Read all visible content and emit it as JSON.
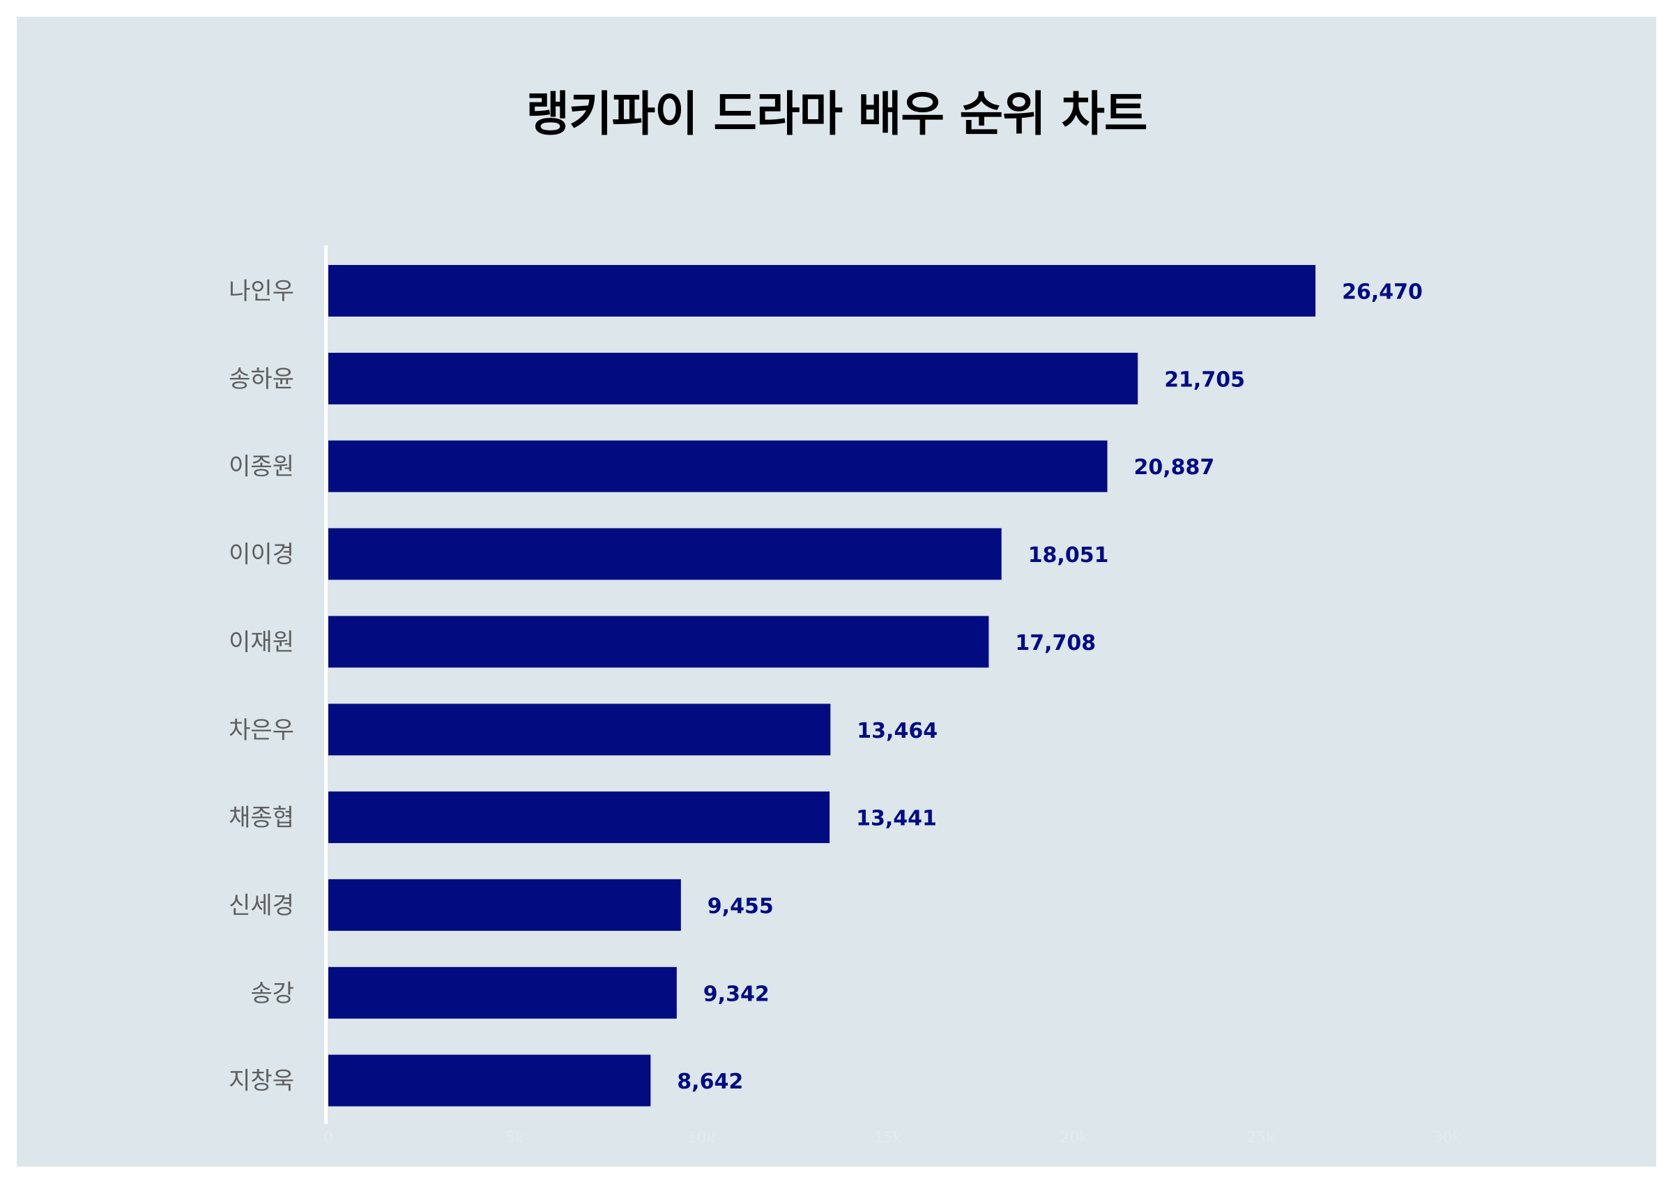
{
  "chart_data": {
    "type": "bar",
    "orientation": "horizontal",
    "title": "랭키파이 드라마 배우 순위 차트",
    "categories": [
      "나인우",
      "송하윤",
      "이종원",
      "이이경",
      "이재원",
      "차은우",
      "채종협",
      "신세경",
      "송강",
      "지창욱"
    ],
    "values": [
      26470,
      21705,
      20887,
      18051,
      17708,
      13464,
      13441,
      9455,
      9342,
      8642
    ],
    "xlim": [
      0,
      30000
    ],
    "x_ticks": [
      0,
      5000,
      10000,
      15000,
      20000,
      25000,
      30000
    ],
    "x_tick_labels": [
      "0",
      "5k",
      "10k",
      "15k",
      "20k",
      "25k",
      "30k"
    ],
    "data_labels": true,
    "grid": false,
    "legend": "none",
    "colors": {
      "bar": "#020c80",
      "value_label": "#020c80",
      "category_label": "#5e5e5e",
      "background": "#dce6eb",
      "page": "#ffffff",
      "axis_line": "#ffffff",
      "tick_label": "#e4eaed",
      "title": "#000000"
    }
  }
}
